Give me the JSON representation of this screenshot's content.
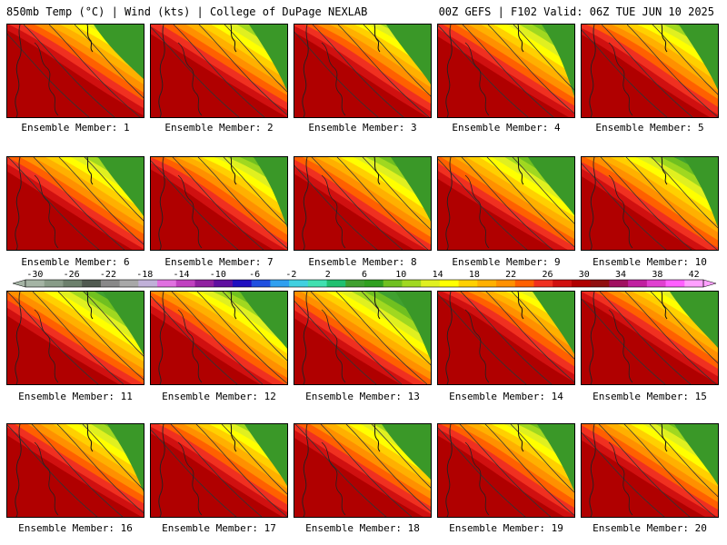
{
  "header": {
    "title_left": "850mb Temp (°C) | Wind (kts) | College of DuPage NEXLAB",
    "title_right": "00Z GEFS | F102 Valid: 06Z TUE JUN 10 2025"
  },
  "panels": [
    {
      "label": "Ensemble Member: 1"
    },
    {
      "label": "Ensemble Member: 2"
    },
    {
      "label": "Ensemble Member: 3"
    },
    {
      "label": "Ensemble Member: 4"
    },
    {
      "label": "Ensemble Member: 5"
    },
    {
      "label": "Ensemble Member: 6"
    },
    {
      "label": "Ensemble Member: 7"
    },
    {
      "label": "Ensemble Member: 8"
    },
    {
      "label": "Ensemble Member: 9"
    },
    {
      "label": "Ensemble Member: 10"
    },
    {
      "label": "Ensemble Member: 11"
    },
    {
      "label": "Ensemble Member: 12"
    },
    {
      "label": "Ensemble Member: 13"
    },
    {
      "label": "Ensemble Member: 14"
    },
    {
      "label": "Ensemble Member: 15"
    },
    {
      "label": "Ensemble Member: 16"
    },
    {
      "label": "Ensemble Member: 17"
    },
    {
      "label": "Ensemble Member: 18"
    },
    {
      "label": "Ensemble Member: 19"
    },
    {
      "label": "Ensemble Member: 20"
    }
  ],
  "colorbar": {
    "ticks": [
      "-30",
      "-26",
      "-22",
      "-18",
      "-14",
      "-10",
      "-6",
      "-2",
      "2",
      "6",
      "10",
      "14",
      "18",
      "22",
      "26",
      "30",
      "34",
      "38",
      "42"
    ],
    "colors": [
      "#a4b4a4",
      "#889c88",
      "#6c806c",
      "#505a50",
      "#888888",
      "#a8a8a8",
      "#c0b0d8",
      "#e070e0",
      "#c040c0",
      "#9020a0",
      "#6010a0",
      "#2010c0",
      "#2050e0",
      "#30a0f0",
      "#40d0e0",
      "#40e0b0",
      "#20c070",
      "#40a030",
      "#30a020",
      "#70c020",
      "#a0d820",
      "#e0f020",
      "#ffff00",
      "#ffd000",
      "#ffb000",
      "#ff9000",
      "#ff6000",
      "#f03020",
      "#d01010",
      "#b00000",
      "#901010",
      "#a01060",
      "#c020a0",
      "#e040d0",
      "#ff60ff",
      "#ffa0ff"
    ]
  }
}
